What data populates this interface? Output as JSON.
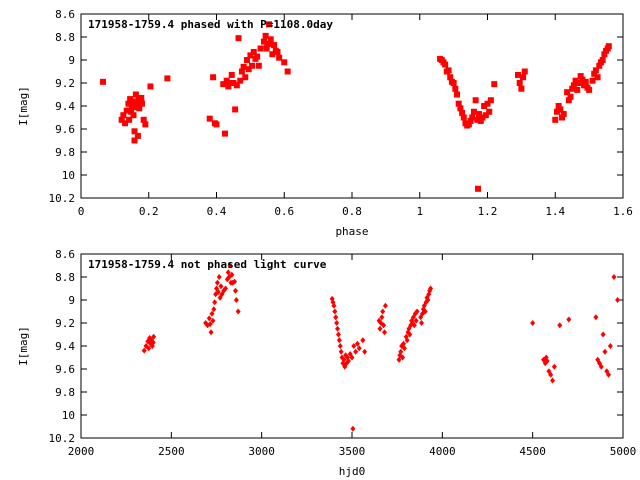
{
  "chart_data": [
    {
      "type": "scatter",
      "title": "171958-1759.4 phased with P=1108.0day",
      "xlabel": "phase",
      "ylabel": "I[mag]",
      "xlim": [
        0,
        1.6
      ],
      "ylim": [
        10.2,
        8.6
      ],
      "y_inverted": true,
      "xticks": [
        0,
        0.2,
        0.4,
        0.6,
        0.8,
        1,
        1.2,
        1.4,
        1.6
      ],
      "xtick_labels": [
        "0",
        "0.2",
        "0.4",
        "0.6",
        "0.8",
        "1",
        "1.2",
        "1.4",
        "1.6"
      ],
      "yticks": [
        8.6,
        8.8,
        9,
        9.2,
        9.4,
        9.6,
        9.8,
        10,
        10.2
      ],
      "ytick_labels": [
        "8.6",
        "8.8",
        "9",
        "9.2",
        "9.4",
        "9.6",
        "9.8",
        "10",
        "10.2"
      ],
      "grid": false,
      "marker_color": "#ff0000",
      "marker": "filled-square",
      "points": [
        [
          0.065,
          9.19
        ],
        [
          0.12,
          9.52
        ],
        [
          0.125,
          9.48
        ],
        [
          0.13,
          9.55
        ],
        [
          0.135,
          9.44
        ],
        [
          0.14,
          9.38
        ],
        [
          0.142,
          9.52
        ],
        [
          0.145,
          9.34
        ],
        [
          0.148,
          9.45
        ],
        [
          0.15,
          9.4
        ],
        [
          0.152,
          9.36
        ],
        [
          0.155,
          9.48
        ],
        [
          0.158,
          9.62
        ],
        [
          0.16,
          9.41
        ],
        [
          0.162,
          9.3
        ],
        [
          0.165,
          9.38
        ],
        [
          0.168,
          9.66
        ],
        [
          0.17,
          9.35
        ],
        [
          0.172,
          9.42
        ],
        [
          0.175,
          9.37
        ],
        [
          0.178,
          9.33
        ],
        [
          0.158,
          9.7
        ],
        [
          0.18,
          9.38
        ],
        [
          0.185,
          9.52
        ],
        [
          0.19,
          9.56
        ],
        [
          0.205,
          9.23
        ],
        [
          0.255,
          9.16
        ],
        [
          0.38,
          9.51
        ],
        [
          0.39,
          9.15
        ],
        [
          0.395,
          9.55
        ],
        [
          0.4,
          9.56
        ],
        [
          0.42,
          9.21
        ],
        [
          0.425,
          9.64
        ],
        [
          0.43,
          9.18
        ],
        [
          0.435,
          9.23
        ],
        [
          0.44,
          9.2
        ],
        [
          0.445,
          9.13
        ],
        [
          0.45,
          9.2
        ],
        [
          0.455,
          9.43
        ],
        [
          0.46,
          9.22
        ],
        [
          0.465,
          8.81
        ],
        [
          0.47,
          9.18
        ],
        [
          0.475,
          9.1
        ],
        [
          0.48,
          9.06
        ],
        [
          0.485,
          9.15
        ],
        [
          0.49,
          9.0
        ],
        [
          0.495,
          9.08
        ],
        [
          0.5,
          8.96
        ],
        [
          0.505,
          9.05
        ],
        [
          0.51,
          8.93
        ],
        [
          0.515,
          8.99
        ],
        [
          0.52,
          8.97
        ],
        [
          0.525,
          9.05
        ],
        [
          0.53,
          8.9
        ],
        [
          0.54,
          8.84
        ],
        [
          0.545,
          8.79
        ],
        [
          0.548,
          8.9
        ],
        [
          0.55,
          8.86
        ],
        [
          0.555,
          8.69
        ],
        [
          0.558,
          8.86
        ],
        [
          0.56,
          8.82
        ],
        [
          0.565,
          8.95
        ],
        [
          0.57,
          8.87
        ],
        [
          0.575,
          8.92
        ],
        [
          0.58,
          8.93
        ],
        [
          0.585,
          8.98
        ],
        [
          0.6,
          9.02
        ],
        [
          0.61,
          9.1
        ],
        [
          1.06,
          8.99
        ],
        [
          1.065,
          9.0
        ],
        [
          1.07,
          9.02
        ],
        [
          1.075,
          9.04
        ],
        [
          1.08,
          9.1
        ],
        [
          1.085,
          9.09
        ],
        [
          1.09,
          9.15
        ],
        [
          1.095,
          9.19
        ],
        [
          1.1,
          9.2
        ],
        [
          1.105,
          9.25
        ],
        [
          1.11,
          9.3
        ],
        [
          1.115,
          9.38
        ],
        [
          1.12,
          9.42
        ],
        [
          1.125,
          9.46
        ],
        [
          1.13,
          9.5
        ],
        [
          1.135,
          9.55
        ],
        [
          1.14,
          9.57
        ],
        [
          1.145,
          9.56
        ],
        [
          1.15,
          9.53
        ],
        [
          1.155,
          9.5
        ],
        [
          1.16,
          9.45
        ],
        [
          1.165,
          9.35
        ],
        [
          1.17,
          9.52
        ],
        [
          1.172,
          10.12
        ],
        [
          1.175,
          9.47
        ],
        [
          1.18,
          9.53
        ],
        [
          1.185,
          9.5
        ],
        [
          1.19,
          9.4
        ],
        [
          1.195,
          9.48
        ],
        [
          1.2,
          9.38
        ],
        [
          1.205,
          9.45
        ],
        [
          1.21,
          9.35
        ],
        [
          1.22,
          9.21
        ],
        [
          1.29,
          9.13
        ],
        [
          1.295,
          9.2
        ],
        [
          1.3,
          9.25
        ],
        [
          1.305,
          9.15
        ],
        [
          1.31,
          9.1
        ],
        [
          1.4,
          9.52
        ],
        [
          1.405,
          9.45
        ],
        [
          1.41,
          9.4
        ],
        [
          1.415,
          9.43
        ],
        [
          1.42,
          9.5
        ],
        [
          1.425,
          9.47
        ],
        [
          1.435,
          9.28
        ],
        [
          1.44,
          9.35
        ],
        [
          1.445,
          9.32
        ],
        [
          1.45,
          9.25
        ],
        [
          1.455,
          9.22
        ],
        [
          1.46,
          9.18
        ],
        [
          1.465,
          9.26
        ],
        [
          1.47,
          9.2
        ],
        [
          1.475,
          9.14
        ],
        [
          1.48,
          9.17
        ],
        [
          1.485,
          9.22
        ],
        [
          1.49,
          9.19
        ],
        [
          1.495,
          9.24
        ],
        [
          1.5,
          9.26
        ],
        [
          1.51,
          9.18
        ],
        [
          1.515,
          9.12
        ],
        [
          1.52,
          9.09
        ],
        [
          1.525,
          9.15
        ],
        [
          1.53,
          9.05
        ],
        [
          1.535,
          9.02
        ],
        [
          1.54,
          9.0
        ],
        [
          1.545,
          8.95
        ],
        [
          1.55,
          8.92
        ],
        [
          1.555,
          8.9
        ],
        [
          1.558,
          8.88
        ]
      ]
    },
    {
      "type": "scatter",
      "title": "171958-1759.4 not phased light curve",
      "xlabel": "hjd0",
      "ylabel": "I[mag]",
      "xlim": [
        2000,
        5000
      ],
      "ylim": [
        10.2,
        8.6
      ],
      "y_inverted": true,
      "xticks": [
        2000,
        2500,
        3000,
        3500,
        4000,
        4500,
        5000
      ],
      "xtick_labels": [
        "2000",
        "2500",
        "3000",
        "3500",
        "4000",
        "4500",
        "5000"
      ],
      "yticks": [
        8.6,
        8.8,
        9,
        9.2,
        9.4,
        9.6,
        9.8,
        10,
        10.2
      ],
      "ytick_labels": [
        "8.6",
        "8.8",
        "9",
        "9.2",
        "9.4",
        "9.6",
        "9.8",
        "10",
        "10.2"
      ],
      "grid": false,
      "marker_color": "#ff0000",
      "marker": "filled-diamond",
      "points": [
        [
          2350,
          9.44
        ],
        [
          2360,
          9.4
        ],
        [
          2370,
          9.36
        ],
        [
          2375,
          9.42
        ],
        [
          2380,
          9.33
        ],
        [
          2385,
          9.38
        ],
        [
          2390,
          9.35
        ],
        [
          2395,
          9.4
        ],
        [
          2400,
          9.37
        ],
        [
          2402,
          9.32
        ],
        [
          2690,
          9.2
        ],
        [
          2700,
          9.22
        ],
        [
          2710,
          9.16
        ],
        [
          2715,
          9.21
        ],
        [
          2720,
          9.28
        ],
        [
          2725,
          9.12
        ],
        [
          2730,
          9.18
        ],
        [
          2735,
          9.08
        ],
        [
          2740,
          9.02
        ],
        [
          2745,
          8.95
        ],
        [
          2750,
          8.9
        ],
        [
          2755,
          8.85
        ],
        [
          2760,
          8.93
        ],
        [
          2765,
          8.8
        ],
        [
          2770,
          8.98
        ],
        [
          2775,
          8.88
        ],
        [
          2780,
          8.95
        ],
        [
          2790,
          8.92
        ],
        [
          2800,
          8.9
        ],
        [
          2810,
          8.82
        ],
        [
          2815,
          8.76
        ],
        [
          2820,
          8.8
        ],
        [
          2825,
          8.7
        ],
        [
          2830,
          8.85
        ],
        [
          2835,
          8.78
        ],
        [
          2840,
          8.85
        ],
        [
          2850,
          8.84
        ],
        [
          2855,
          8.92
        ],
        [
          2860,
          9.0
        ],
        [
          2870,
          9.1
        ],
        [
          3390,
          8.99
        ],
        [
          3395,
          9.02
        ],
        [
          3400,
          9.05
        ],
        [
          3405,
          9.1
        ],
        [
          3410,
          9.15
        ],
        [
          3415,
          9.2
        ],
        [
          3420,
          9.25
        ],
        [
          3425,
          9.3
        ],
        [
          3430,
          9.35
        ],
        [
          3435,
          9.4
        ],
        [
          3440,
          9.45
        ],
        [
          3445,
          9.5
        ],
        [
          3450,
          9.55
        ],
        [
          3455,
          9.52
        ],
        [
          3460,
          9.58
        ],
        [
          3465,
          9.48
        ],
        [
          3470,
          9.55
        ],
        [
          3475,
          9.5
        ],
        [
          3480,
          9.53
        ],
        [
          3490,
          9.47
        ],
        [
          3500,
          9.5
        ],
        [
          3505,
          10.12
        ],
        [
          3510,
          9.4
        ],
        [
          3520,
          9.45
        ],
        [
          3530,
          9.38
        ],
        [
          3540,
          9.42
        ],
        [
          3560,
          9.35
        ],
        [
          3570,
          9.45
        ],
        [
          3650,
          9.18
        ],
        [
          3655,
          9.25
        ],
        [
          3660,
          9.2
        ],
        [
          3665,
          9.15
        ],
        [
          3670,
          9.1
        ],
        [
          3675,
          9.22
        ],
        [
          3680,
          9.28
        ],
        [
          3685,
          9.05
        ],
        [
          3760,
          9.52
        ],
        [
          3765,
          9.48
        ],
        [
          3770,
          9.45
        ],
        [
          3775,
          9.4
        ],
        [
          3780,
          9.5
        ],
        [
          3785,
          9.38
        ],
        [
          3790,
          9.42
        ],
        [
          3800,
          9.32
        ],
        [
          3805,
          9.35
        ],
        [
          3810,
          9.28
        ],
        [
          3815,
          9.25
        ],
        [
          3820,
          9.3
        ],
        [
          3825,
          9.22
        ],
        [
          3830,
          9.18
        ],
        [
          3835,
          9.2
        ],
        [
          3840,
          9.15
        ],
        [
          3845,
          9.22
        ],
        [
          3850,
          9.12
        ],
        [
          3855,
          9.18
        ],
        [
          3860,
          9.1
        ],
        [
          3880,
          9.15
        ],
        [
          3885,
          9.2
        ],
        [
          3890,
          9.12
        ],
        [
          3895,
          9.08
        ],
        [
          3900,
          9.05
        ],
        [
          3905,
          9.1
        ],
        [
          3910,
          9.02
        ],
        [
          3915,
          8.98
        ],
        [
          3920,
          9.0
        ],
        [
          3925,
          8.95
        ],
        [
          3930,
          8.92
        ],
        [
          3935,
          8.9
        ],
        [
          4500,
          9.2
        ],
        [
          4560,
          9.52
        ],
        [
          4570,
          9.55
        ],
        [
          4575,
          9.5
        ],
        [
          4580,
          9.53
        ],
        [
          4590,
          9.62
        ],
        [
          4600,
          9.65
        ],
        [
          4610,
          9.7
        ],
        [
          4620,
          9.58
        ],
        [
          4650,
          9.22
        ],
        [
          4700,
          9.17
        ],
        [
          4850,
          9.15
        ],
        [
          4860,
          9.52
        ],
        [
          4870,
          9.55
        ],
        [
          4880,
          9.58
        ],
        [
          4890,
          9.3
        ],
        [
          4900,
          9.45
        ],
        [
          4910,
          9.62
        ],
        [
          4920,
          9.65
        ],
        [
          4930,
          9.4
        ],
        [
          4950,
          8.8
        ],
        [
          4970,
          9.0
        ]
      ]
    }
  ]
}
